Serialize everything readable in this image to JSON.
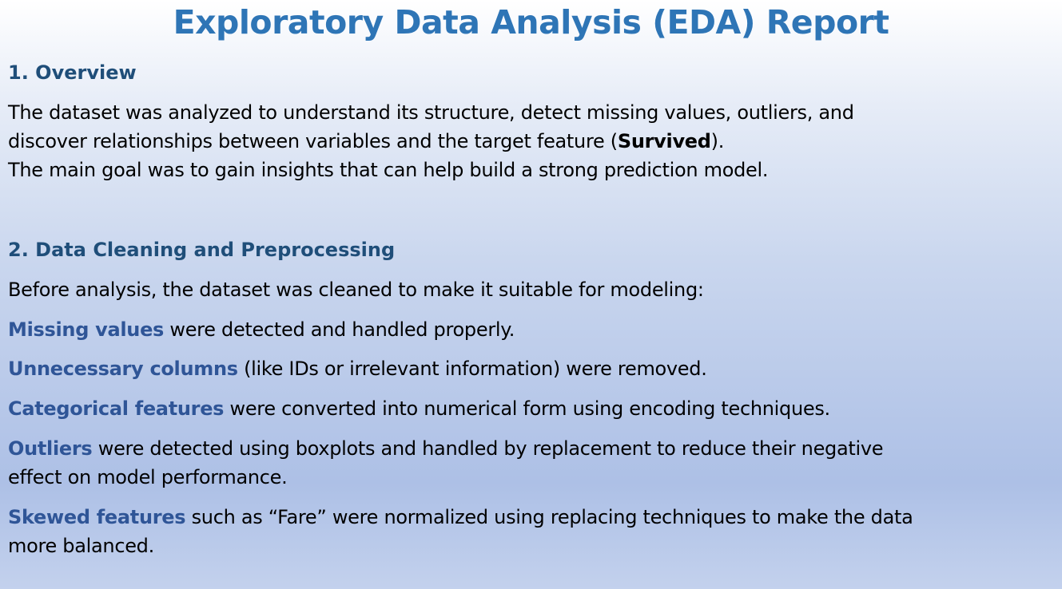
{
  "title": "Exploratory Data Analysis (EDA) Report",
  "overview": {
    "heading": "1. Overview",
    "line1": "The dataset was analyzed to understand its structure, detect missing values, outliers, and",
    "line2_pre": "discover relationships between variables and the target feature (",
    "line2_bold": "Survived",
    "line2_post": ").",
    "line3": "The main goal was to gain insights that can help build a strong prediction model."
  },
  "cleaning": {
    "heading": "2. Data Cleaning and Preprocessing",
    "intro": "Before analysis, the dataset was cleaned to make it suitable for modeling:",
    "items": [
      {
        "term": "Missing values",
        "rest": " were detected and handled properly."
      },
      {
        "term": "Unnecessary columns",
        "rest": " (like IDs or irrelevant information) were removed."
      },
      {
        "term": "Categorical features",
        "rest": " were converted into numerical form using encoding techniques."
      },
      {
        "term": "Outliers",
        "rest": " were detected using boxplots and handled by replacement to reduce their negative",
        "rest2": "effect on model performance."
      },
      {
        "term": "Skewed features",
        "rest": " such as “Fare” were normalized using replacing techniques to make the data",
        "rest2": "more balanced."
      }
    ]
  },
  "colors": {
    "title": "#2e75b6",
    "heading": "#1f4e79",
    "term": "#2f5597"
  }
}
